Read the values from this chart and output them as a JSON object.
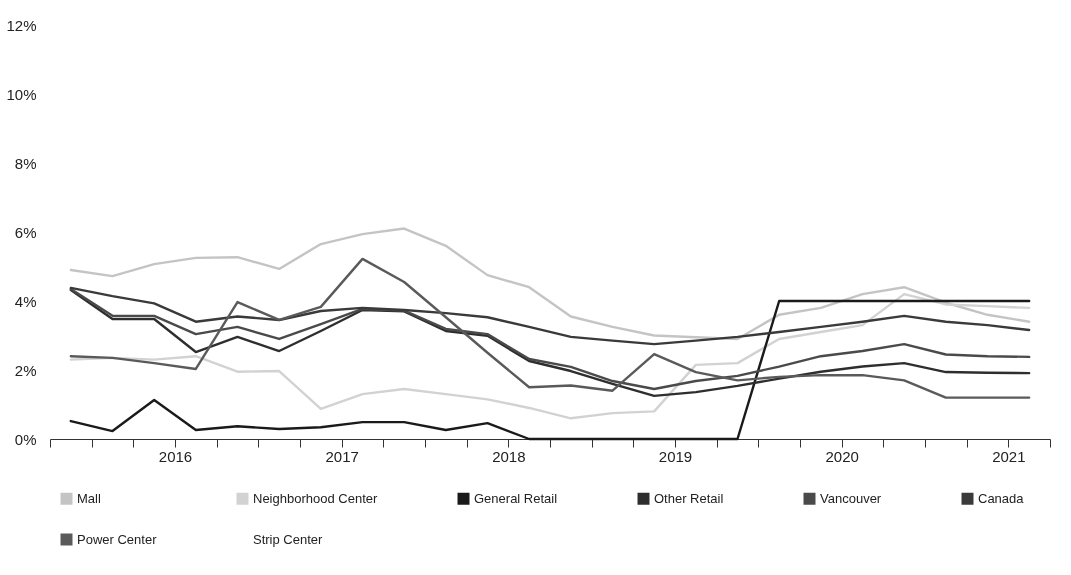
{
  "chart_data": {
    "type": "line",
    "x": [
      2015.875,
      2016.125,
      2016.375,
      2016.625,
      2016.875,
      2017.125,
      2017.375,
      2017.625,
      2017.875,
      2018.125,
      2018.375,
      2018.625,
      2018.875,
      2019.125,
      2019.375,
      2019.625,
      2019.875,
      2020.125,
      2020.375,
      2020.625,
      2020.875,
      2021.125,
      2021.375,
      2021.625
    ],
    "series": [
      {
        "name": "Mall",
        "color": "#c4c4c4",
        "values": [
          4.9,
          4.72,
          5.07,
          5.25,
          5.27,
          4.93,
          5.65,
          5.94,
          6.1,
          5.6,
          4.75,
          4.4,
          3.55,
          3.25,
          3.0,
          2.95,
          2.9,
          3.6,
          3.8,
          4.2,
          4.4,
          3.95,
          3.6,
          3.4
        ]
      },
      {
        "name": "Neighborhood Center",
        "color": "#d2d2d2",
        "values": [
          2.3,
          2.35,
          2.3,
          2.4,
          1.95,
          1.97,
          0.87,
          1.3,
          1.45,
          1.3,
          1.15,
          0.9,
          0.6,
          0.75,
          0.8,
          2.15,
          2.2,
          2.9,
          3.1,
          3.3,
          4.2,
          3.9,
          3.85,
          3.8
        ]
      },
      {
        "name": "General Retail",
        "color": "#1a1a1a",
        "values": [
          0.52,
          0.23,
          1.13,
          0.26,
          0.37,
          0.29,
          0.34,
          0.49,
          0.49,
          0.26,
          0.46,
          0,
          0,
          0,
          0,
          0,
          0,
          4.0,
          4.0,
          4.0,
          4.0,
          4.0,
          4.0,
          4.0
        ]
      },
      {
        "name": "Other Retail",
        "color": "#2e2e2e",
        "values": [
          4.32,
          3.48,
          3.48,
          2.52,
          2.96,
          2.55,
          3.13,
          3.74,
          3.7,
          3.13,
          2.99,
          2.26,
          1.97,
          1.6,
          1.25,
          1.36,
          1.54,
          1.75,
          1.95,
          2.1,
          2.2,
          1.94,
          1.92,
          1.91
        ]
      },
      {
        "name": "Vancouver",
        "color": "#4a4a4a",
        "values": [
          4.35,
          3.57,
          3.57,
          3.04,
          3.25,
          2.9,
          3.33,
          3.77,
          3.72,
          3.19,
          3.04,
          2.32,
          2.09,
          1.68,
          1.45,
          1.68,
          1.83,
          2.1,
          2.4,
          2.55,
          2.75,
          2.45,
          2.4,
          2.38
        ]
      },
      {
        "name": "Canada",
        "color": "#3a3a3a",
        "values": [
          4.38,
          4.14,
          3.93,
          3.4,
          3.55,
          3.45,
          3.71,
          3.8,
          3.74,
          3.65,
          3.53,
          3.25,
          2.96,
          2.85,
          2.75,
          2.85,
          2.96,
          3.1,
          3.25,
          3.4,
          3.57,
          3.4,
          3.3,
          3.16
        ]
      },
      {
        "name": "Power Center",
        "color": "#5a5a5a",
        "values": [
          2.4,
          2.35,
          2.2,
          2.03,
          3.97,
          3.45,
          3.83,
          5.22,
          4.55,
          3.53,
          2.5,
          1.5,
          1.55,
          1.4,
          2.46,
          1.94,
          1.7,
          1.8,
          1.85,
          1.85,
          1.7,
          1.2,
          1.2,
          1.2
        ]
      },
      {
        "name": "Strip Center",
        "color": null,
        "values": [
          null,
          null,
          null,
          null,
          null,
          null,
          null,
          null,
          null,
          null,
          null,
          null,
          null,
          null,
          null,
          null,
          null,
          null,
          null,
          null,
          null,
          null,
          null,
          null
        ]
      }
    ],
    "xlim": [
      2015.75,
      2021.75
    ],
    "xticks": [
      {
        "value": 2015.75,
        "label": null
      },
      {
        "value": 2016,
        "label": null
      },
      {
        "value": 2016.25,
        "label": null
      },
      {
        "value": 2016.5,
        "label": "2016"
      },
      {
        "value": 2016.75,
        "label": null
      },
      {
        "value": 2017,
        "label": null
      },
      {
        "value": 2017.25,
        "label": null
      },
      {
        "value": 2017.5,
        "label": "2017"
      },
      {
        "value": 2017.75,
        "label": null
      },
      {
        "value": 2018,
        "label": null
      },
      {
        "value": 2018.25,
        "label": null
      },
      {
        "value": 2018.5,
        "label": "2018"
      },
      {
        "value": 2018.75,
        "label": null
      },
      {
        "value": 2019,
        "label": null
      },
      {
        "value": 2019.25,
        "label": null
      },
      {
        "value": 2019.5,
        "label": "2019"
      },
      {
        "value": 2019.75,
        "label": null
      },
      {
        "value": 2020,
        "label": null
      },
      {
        "value": 2020.25,
        "label": null
      },
      {
        "value": 2020.5,
        "label": "2020"
      },
      {
        "value": 2020.75,
        "label": null
      },
      {
        "value": 2021,
        "label": null
      },
      {
        "value": 2021.25,
        "label": null
      },
      {
        "value": 2021.5,
        "label": "2021"
      },
      {
        "value": 2021.75,
        "label": null
      }
    ],
    "ylim": [
      0,
      12
    ],
    "yticks": [
      {
        "value": 0,
        "label": "0%"
      },
      {
        "value": 2,
        "label": "2%"
      },
      {
        "value": 4,
        "label": "4%"
      },
      {
        "value": 6,
        "label": "6%"
      },
      {
        "value": 8,
        "label": "8%"
      },
      {
        "value": 10,
        "label": "10%"
      },
      {
        "value": 12,
        "label": "12%"
      }
    ],
    "grid": false,
    "legend": "bottom"
  }
}
